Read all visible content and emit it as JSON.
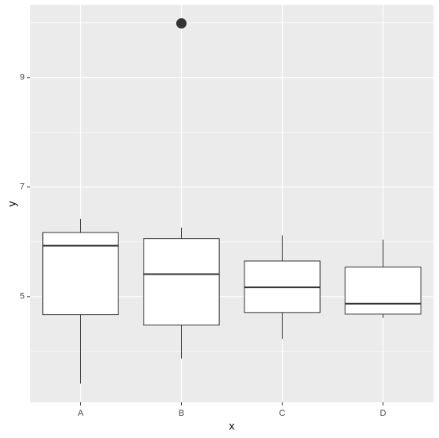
{
  "chart_data": {
    "type": "boxplot",
    "x_label": "x",
    "y_label": "y",
    "categories": [
      "A",
      "B",
      "C",
      "D"
    ],
    "boxes": [
      {
        "min": 3.41,
        "q1": 4.67,
        "median": 5.93,
        "q3": 6.17,
        "max": 6.42,
        "outliers": []
      },
      {
        "min": 3.87,
        "q1": 4.48,
        "median": 5.41,
        "q3": 6.06,
        "max": 6.26,
        "outliers": [
          9.99
        ]
      },
      {
        "min": 4.23,
        "q1": 4.71,
        "median": 5.17,
        "q3": 5.65,
        "max": 6.12,
        "outliers": []
      },
      {
        "min": 4.61,
        "q1": 4.68,
        "median": 4.87,
        "q3": 5.54,
        "max": 6.04,
        "outliers": []
      }
    ],
    "ylim": [
      3.07,
      10.33
    ],
    "yticks": [
      5,
      7,
      9
    ],
    "y_minor_grid": [
      4,
      6,
      8,
      10
    ],
    "grid": true,
    "panel_color": "#ebebeb",
    "box_fill": "#ffffff",
    "line_color": "#333333"
  }
}
